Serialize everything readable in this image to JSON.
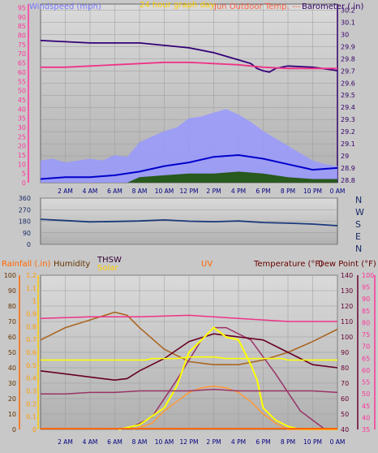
{
  "header": {
    "windspeed_label": "Windspeed (mph)",
    "title_label": "24 hour graph day",
    "overlap_label": "Jun Outdoor Temp. ---",
    "barometer_label": "Barometer (.in)"
  },
  "middle": {
    "compass": [
      "N",
      "W",
      "S",
      "E",
      "N"
    ]
  },
  "bottom_labels": {
    "rainfall": "Rainfall (.in)",
    "humidity": "Humidity",
    "thsw": "THSW",
    "solar": "Solar",
    "uv": "UV",
    "temperature": "Temperature (°F)",
    "dew_point": "Dew Point (°F)"
  },
  "colors": {
    "windspeed_axis": "#ff3399",
    "barometer_axis": "#330066",
    "rainfall_axis": "#ff6600",
    "humidity_axis": "#ffcc00",
    "temperature_axis": "#660033",
    "dewpoint_axis": "#ff3399",
    "plot_bg_top": "#d6d6d6",
    "plot_bg_bottom": "#b4b4b4"
  },
  "chart_data": [
    {
      "type": "line",
      "panel": "top",
      "x_ticks": [
        "2 AM",
        "4 AM",
        "6 AM",
        "8 AM",
        "10 AM",
        "12 PM",
        "2 PM",
        "4 PM",
        "6 PM",
        "8 PM",
        "10 PM",
        "0 AM"
      ],
      "left_axis_ticks": [
        "0",
        "5",
        "10",
        "15",
        "20",
        "25",
        "30",
        "35",
        "40",
        "45",
        "50",
        "55",
        "60",
        "65",
        "70",
        "75",
        "80",
        "85",
        "90",
        "95"
      ],
      "left_axis_range": [
        0,
        97
      ],
      "right_axis_ticks": [
        "28.8",
        "28.9",
        "29",
        "29.1",
        "29.2",
        "29.3",
        "29.4",
        "29.5",
        "29.6",
        "29.7",
        "29.8",
        "29.9",
        "30",
        "30.1",
        "30.2"
      ],
      "right_axis_range": [
        28.78,
        30.25
      ],
      "series": [
        {
          "role": "barometer",
          "color": "#330077",
          "x": [
            0,
            2,
            4,
            6,
            8,
            10,
            12,
            14,
            16,
            17,
            17.5,
            18,
            18.5,
            19,
            20,
            22,
            23.5,
            24
          ],
          "y": [
            29.95,
            29.94,
            29.93,
            29.93,
            29.93,
            29.91,
            29.89,
            29.85,
            29.79,
            29.76,
            29.72,
            29.7,
            29.69,
            29.72,
            29.74,
            29.73,
            29.71,
            29.7
          ]
        },
        {
          "role": "outdoor temp",
          "color": "#ee3388",
          "x": [
            0,
            2,
            4,
            6,
            8,
            10,
            12,
            14,
            16,
            18,
            20,
            22,
            24
          ],
          "y": [
            29.73,
            29.73,
            29.74,
            29.75,
            29.76,
            29.77,
            29.77,
            29.76,
            29.75,
            29.73,
            29.72,
            29.72,
            29.72
          ]
        },
        {
          "role": "wind gust",
          "color": "#9999ff",
          "x": [
            0,
            1,
            2,
            3,
            4,
            5,
            6,
            7,
            7.5,
            8,
            9,
            10,
            11,
            12,
            13,
            14,
            15,
            16,
            17,
            18,
            19,
            20,
            21,
            22,
            23,
            24
          ],
          "y": [
            12,
            13,
            11,
            12,
            13,
            12,
            15,
            14,
            18,
            22,
            25,
            28,
            30,
            35,
            36,
            38,
            40,
            37,
            33,
            28,
            24,
            20,
            16,
            12,
            10,
            9
          ]
        },
        {
          "role": "wind avg",
          "color": "#0000cc",
          "x": [
            0,
            2,
            4,
            6,
            8,
            10,
            12,
            14,
            16,
            18,
            20,
            22,
            24
          ],
          "y": [
            2,
            3,
            3,
            4,
            6,
            9,
            11,
            14,
            15,
            13,
            10,
            7,
            8
          ]
        },
        {
          "role": "wind low",
          "color": "#225511",
          "x": [
            0,
            4,
            7,
            8,
            10,
            12,
            14,
            16,
            18,
            20,
            22,
            24
          ],
          "y": [
            0,
            0,
            0,
            3,
            4,
            5,
            5,
            6,
            5,
            3,
            2,
            2
          ]
        }
      ]
    },
    {
      "type": "line",
      "panel": "middle",
      "y_ticks": [
        "0",
        "90",
        "180",
        "270",
        "360"
      ],
      "ylim": [
        0,
        360
      ],
      "series": [
        {
          "role": "wind direction",
          "color": "#1a3a7a",
          "x": [
            0,
            2,
            4,
            6,
            8,
            10,
            12,
            14,
            16,
            18,
            20,
            22,
            24
          ],
          "y": [
            195,
            185,
            175,
            178,
            182,
            190,
            180,
            176,
            182,
            170,
            165,
            158,
            145
          ]
        }
      ]
    },
    {
      "type": "line",
      "panel": "bottom",
      "left_scales": [
        {
          "label": "rainfall",
          "ticks": [
            "0",
            "10",
            "20",
            "30",
            "40",
            "50",
            "60",
            "70",
            "80",
            "90",
            "100"
          ]
        },
        {
          "label": "humidity",
          "ticks": [
            "0",
            "0.1",
            "0.2",
            "0.3",
            "0.4",
            "0.5",
            "0.6",
            "0.7",
            "0.8",
            "0.9",
            "1",
            "1.1",
            "1.2"
          ]
        }
      ],
      "right_scales": [
        {
          "label": "temperature",
          "ticks": [
            "40",
            "50",
            "60",
            "70",
            "80",
            "90",
            "100",
            "110",
            "120",
            "130",
            "140"
          ]
        },
        {
          "label": "dew point",
          "ticks": [
            "35",
            "40",
            "45",
            "50",
            "55",
            "60",
            "65",
            "70",
            "75",
            "80",
            "85",
            "90",
            "95",
            "100"
          ]
        }
      ],
      "series": [
        {
          "role": "humidity",
          "color": "#aa6622",
          "x": [
            0,
            2,
            4,
            6,
            7,
            8,
            10,
            12,
            14,
            16,
            18,
            20,
            22,
            24
          ],
          "y": [
            58,
            66,
            71,
            76,
            74,
            66,
            52,
            44,
            42,
            42,
            45,
            50,
            57,
            65
          ]
        },
        {
          "role": "temperature",
          "color": "#ee3388",
          "x": [
            0,
            4,
            8,
            12,
            14,
            16,
            20,
            24
          ],
          "y": [
            72,
            73,
            73,
            74,
            73,
            72,
            70,
            70
          ]
        },
        {
          "role": "thsw",
          "color": "#993366",
          "x": [
            7,
            9,
            11,
            13,
            14,
            15,
            17,
            19,
            21,
            23,
            24
          ],
          "y": [
            0,
            8,
            32,
            58,
            66,
            66,
            58,
            36,
            12,
            0,
            0
          ]
        },
        {
          "role": "dark temp",
          "color": "#660022",
          "x": [
            0,
            2,
            4,
            6,
            7,
            8,
            10,
            12,
            14,
            16,
            18,
            20,
            22,
            24
          ],
          "y": [
            38,
            36,
            34,
            32,
            33,
            38,
            46,
            57,
            62,
            60,
            58,
            50,
            42,
            40
          ]
        },
        {
          "role": "solar",
          "color": "#ffff00",
          "x": [
            0,
            8.5,
            9,
            10,
            11,
            12,
            13,
            14,
            15,
            16,
            17,
            17.5,
            18,
            18.5,
            19,
            19.5,
            20,
            21,
            24
          ],
          "y": [
            45,
            45,
            46,
            46,
            46,
            47,
            47,
            47,
            46,
            46,
            46,
            46,
            46,
            46,
            46,
            46,
            45,
            45,
            45
          ]
        },
        {
          "role": "solar curve",
          "color": "#ffff00",
          "x": [
            6.3,
            8,
            10,
            11,
            12,
            13,
            14,
            15,
            16,
            17,
            17.5,
            18,
            19,
            20,
            21,
            22,
            23,
            24
          ],
          "y": [
            0,
            3,
            14,
            30,
            48,
            60,
            64,
            62,
            56,
            44,
            30,
            16,
            6,
            2,
            0,
            0,
            0,
            0
          ]
        },
        {
          "role": "uv",
          "color": "#ff9933",
          "x": [
            7.5,
            9,
            10,
            11,
            12,
            13,
            14,
            15,
            16,
            17,
            18,
            19,
            20,
            24
          ],
          "y": [
            0,
            4,
            12,
            18,
            24,
            27,
            28,
            27,
            24,
            18,
            10,
            4,
            0,
            0
          ]
        },
        {
          "role": "dew point",
          "color": "#993366",
          "x": [
            0,
            2,
            4,
            6,
            8,
            10,
            12,
            14,
            16,
            18,
            20,
            22,
            24
          ],
          "y": [
            23,
            23,
            24,
            24,
            25,
            25,
            25,
            26,
            25,
            25,
            25,
            25,
            24
          ]
        }
      ]
    }
  ]
}
